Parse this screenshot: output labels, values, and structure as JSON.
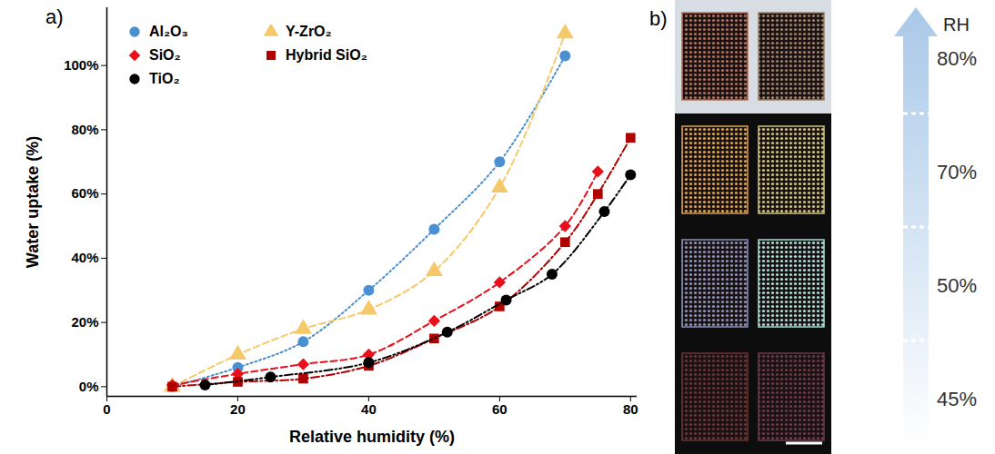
{
  "chart_data": {
    "type": "scatter",
    "panel_label": "a)",
    "x_label": "Relative humidity (%)",
    "y_label": "Water uptake (%)",
    "xlim": [
      0,
      81
    ],
    "ylim": [
      -3,
      118
    ],
    "xticks": [
      0,
      20,
      40,
      60,
      80
    ],
    "yticks": [
      {
        "value": 0,
        "label": "0%"
      },
      {
        "value": 20,
        "label": "20%"
      },
      {
        "value": 40,
        "label": "40%"
      },
      {
        "value": 60,
        "label": "60%"
      },
      {
        "value": 80,
        "label": "80%"
      },
      {
        "value": 100,
        "label": "100%"
      }
    ],
    "grid": false,
    "legend": "top-left",
    "series": [
      {
        "name": "Al₂O₃",
        "color": "#4a90d0",
        "marker": "circle",
        "line_style": "dotted",
        "x": [
          10,
          20,
          30,
          40,
          50,
          60,
          70
        ],
        "values": [
          0,
          6,
          14,
          30,
          49,
          70,
          103
        ]
      },
      {
        "name": "Y-ZrO₂",
        "color": "#f5c96a",
        "marker": "triangle",
        "line_style": "dashed",
        "x": [
          10,
          20,
          30,
          40,
          50,
          60,
          70
        ],
        "values": [
          0,
          10,
          18,
          24,
          36,
          62,
          110
        ]
      },
      {
        "name": "SiO₂",
        "color": "#e8101a",
        "marker": "diamond",
        "line_style": "dashed",
        "x": [
          10,
          20,
          30,
          40,
          50,
          60,
          70,
          75
        ],
        "values": [
          0.5,
          4,
          7,
          10,
          20.5,
          32.5,
          50,
          67
        ]
      },
      {
        "name": "Hybrid SiO₂",
        "color": "#b00000",
        "marker": "square",
        "line_style": "dashdot",
        "x": [
          10,
          20,
          30,
          40,
          50,
          60,
          70,
          75,
          80
        ],
        "values": [
          0,
          1.5,
          2.5,
          6.5,
          15,
          25,
          45,
          60,
          77.5
        ]
      },
      {
        "name": "TiO₂",
        "color": "#000000",
        "marker": "circle",
        "line_style": "dashdotdot",
        "x": [
          15,
          25,
          40,
          52,
          61,
          68,
          76,
          80
        ],
        "values": [
          0.5,
          3,
          7.5,
          17,
          27,
          35,
          54.5,
          66
        ]
      }
    ]
  },
  "image_panel": {
    "panel_label": "b)",
    "arrow_label": "RH",
    "rows": [
      "80%",
      "70%",
      "50%",
      "45%"
    ]
  }
}
